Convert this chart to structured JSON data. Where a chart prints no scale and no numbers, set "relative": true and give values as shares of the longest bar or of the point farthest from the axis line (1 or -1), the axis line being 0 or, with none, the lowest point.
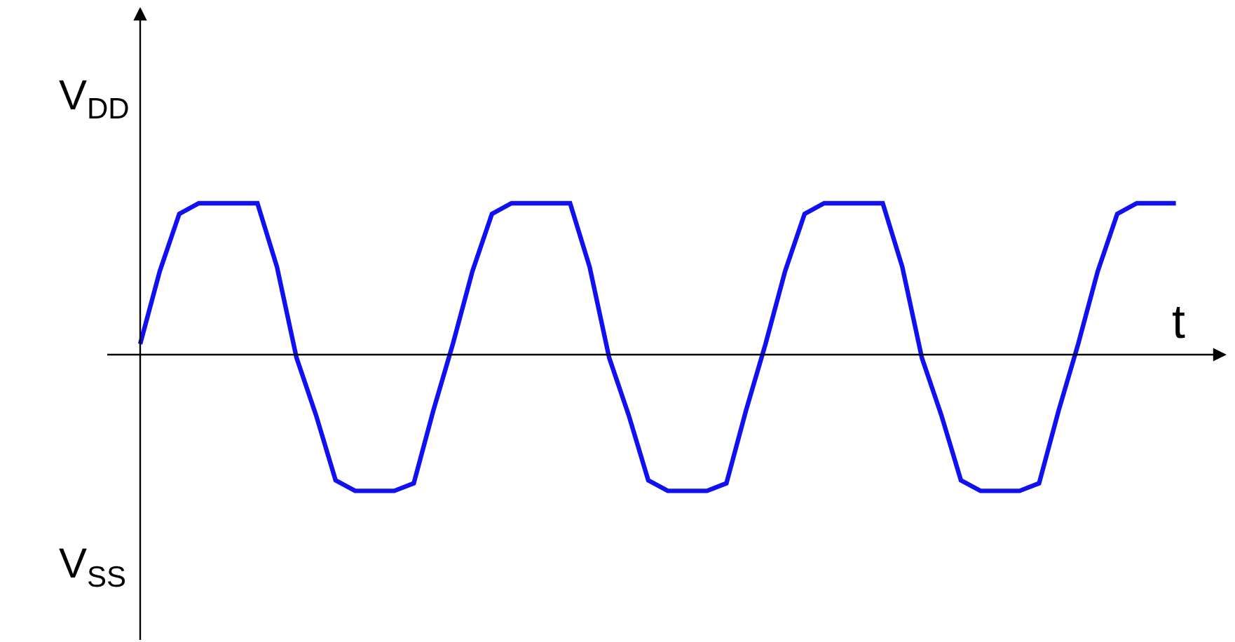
{
  "chart_data": {
    "type": "line",
    "relative": true,
    "xlabel": "t",
    "annotations": [
      "V$_{DD}$",
      "V$_{SS}$"
    ],
    "color": "#1010f0",
    "marker": "none",
    "line_style": "solid",
    "grid": false,
    "categories": [
      null,
      null,
      null,
      null,
      null,
      null,
      null,
      null,
      null,
      null,
      null,
      null,
      null,
      null,
      null,
      null,
      null,
      null,
      null,
      null,
      null,
      null,
      null,
      null,
      null,
      null,
      null,
      null,
      null,
      null,
      null,
      null,
      null,
      null,
      null,
      null,
      null,
      null,
      null,
      null,
      null,
      null,
      null,
      null,
      null,
      null,
      null,
      null,
      null,
      null,
      null,
      null,
      null,
      null
    ],
    "values": [
      0.07,
      0.55,
      0.93,
      1,
      1,
      1,
      1,
      0.58,
      -0.02,
      -0.4,
      -0.83,
      -0.9,
      -0.9,
      -0.9,
      -0.85,
      -0.37,
      0.07,
      0.55,
      0.93,
      1,
      1,
      1,
      1,
      0.58,
      -0.02,
      -0.4,
      -0.83,
      -0.9,
      -0.9,
      -0.9,
      -0.85,
      -0.37,
      0.07,
      0.55,
      0.93,
      1,
      1,
      1,
      1,
      0.58,
      -0.02,
      -0.4,
      -0.83,
      -0.9,
      -0.9,
      -0.9,
      -0.85,
      -0.37,
      0.07,
      0.55,
      0.93,
      1,
      1,
      1
    ]
  }
}
